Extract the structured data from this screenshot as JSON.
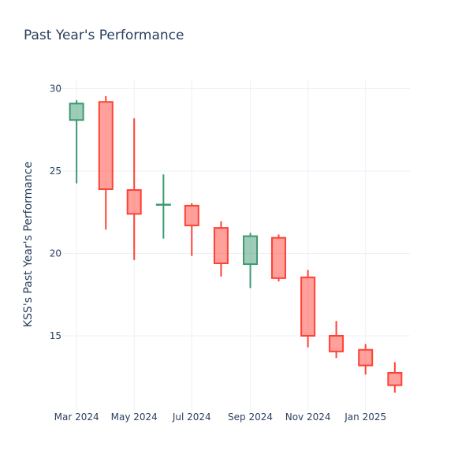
{
  "chart_data": {
    "type": "candlestick",
    "title": "Past Year's Performance",
    "xlabel": "",
    "ylabel": "KSS's Past Year's Performance",
    "ylim": [
      10.5,
      30.6
    ],
    "xlim": [
      "2024-01-30",
      "2025-02-17"
    ],
    "grid": true,
    "legend": "none",
    "increasing_color": "#3d9970",
    "decreasing_color": "#ff4136",
    "y_ticks": [
      15,
      20,
      25,
      30
    ],
    "y_tick_labels": [
      "15",
      "20",
      "25",
      "30"
    ],
    "x_ticks": [
      "2024-03-01",
      "2024-05-01",
      "2024-07-01",
      "2024-09-01",
      "2024-11-01",
      "2025-01-01"
    ],
    "x_tick_labels": [
      "Mar 2024",
      "May 2024",
      "Jul 2024",
      "Sep 2024",
      "Nov 2024",
      "Jan 2025"
    ],
    "candles": [
      {
        "date": "2024-03-01",
        "open": 28.1,
        "high": 29.3,
        "low": 24.25,
        "close": 29.1
      },
      {
        "date": "2024-04-01",
        "open": 29.2,
        "high": 29.55,
        "low": 21.45,
        "close": 23.9
      },
      {
        "date": "2024-05-01",
        "open": 23.85,
        "high": 28.2,
        "low": 19.6,
        "close": 22.4
      },
      {
        "date": "2024-06-01",
        "open": 22.95,
        "high": 24.8,
        "low": 20.9,
        "close": 22.97
      },
      {
        "date": "2024-07-01",
        "open": 22.9,
        "high": 23.05,
        "low": 19.85,
        "close": 21.7
      },
      {
        "date": "2024-08-01",
        "open": 21.55,
        "high": 21.95,
        "low": 18.6,
        "close": 19.4
      },
      {
        "date": "2024-09-01",
        "open": 19.35,
        "high": 21.25,
        "low": 17.9,
        "close": 21.05
      },
      {
        "date": "2024-10-01",
        "open": 20.95,
        "high": 21.15,
        "low": 18.3,
        "close": 18.5
      },
      {
        "date": "2024-11-01",
        "open": 18.55,
        "high": 19.0,
        "low": 14.3,
        "close": 15.0
      },
      {
        "date": "2024-12-01",
        "open": 15.0,
        "high": 15.9,
        "low": 13.65,
        "close": 14.05
      },
      {
        "date": "2025-01-01",
        "open": 14.15,
        "high": 14.5,
        "low": 12.65,
        "close": 13.2
      },
      {
        "date": "2025-02-01",
        "open": 12.75,
        "high": 13.4,
        "low": 11.55,
        "close": 12.0
      }
    ]
  }
}
